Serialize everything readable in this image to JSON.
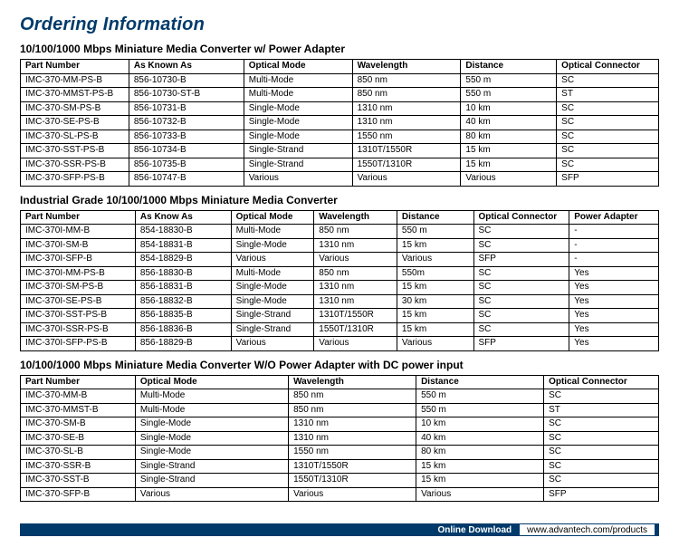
{
  "page_title": "Ordering Information",
  "title_color": "#003a6a",
  "border_color": "#000000",
  "table1": {
    "title": "10/100/1000 Mbps Miniature Media Converter w/ Power Adapter",
    "columns": [
      "Part Number",
      "As Known As",
      "Optical Mode",
      "Wavelength",
      "Distance",
      "Optical Connector"
    ],
    "col_widths": [
      "17%",
      "18%",
      "17%",
      "17%",
      "15%",
      "16%"
    ],
    "rows": [
      [
        "IMC-370-MM-PS-B",
        "856-10730-B",
        "Multi-Mode",
        "850 nm",
        "550 m",
        "SC"
      ],
      [
        "IMC-370-MMST-PS-B",
        "856-10730-ST-B",
        "Multi-Mode",
        "850 nm",
        "550 m",
        "ST"
      ],
      [
        "IMC-370-SM-PS-B",
        "856-10731-B",
        "Single-Mode",
        "1310 nm",
        "10 km",
        "SC"
      ],
      [
        "IMC-370-SE-PS-B",
        "856-10732-B",
        "Single-Mode",
        "1310 nm",
        "40 km",
        "SC"
      ],
      [
        "IMC-370-SL-PS-B",
        "856-10733-B",
        "Single-Mode",
        "1550 nm",
        "80 km",
        "SC"
      ],
      [
        "IMC-370-SST-PS-B",
        "856-10734-B",
        "Single-Strand",
        "1310T/1550R",
        "15 km",
        "SC"
      ],
      [
        "IMC-370-SSR-PS-B",
        "856-10735-B",
        "Single-Strand",
        "1550T/1310R",
        "15 km",
        "SC"
      ],
      [
        "IMC-370-SFP-PS-B",
        "856-10747-B",
        "Various",
        "Various",
        "Various",
        "SFP"
      ]
    ]
  },
  "table2": {
    "title": "Industrial Grade 10/100/1000 Mbps Miniature Media Converter",
    "columns": [
      "Part Number",
      "As Know As",
      "Optical Mode",
      "Wavelength",
      "Distance",
      "Optical Connector",
      "Power Adapter"
    ],
    "col_widths": [
      "18%",
      "15%",
      "13%",
      "13%",
      "12%",
      "15%",
      "14%"
    ],
    "rows": [
      [
        "IMC-370I-MM-B",
        "854-18830-B",
        "Multi-Mode",
        "850 nm",
        "550 m",
        "SC",
        "-"
      ],
      [
        "IMC-370I-SM-B",
        "854-18831-B",
        "Single-Mode",
        "1310 nm",
        "15 km",
        "SC",
        "-"
      ],
      [
        "IMC-370I-SFP-B",
        "854-18829-B",
        "Various",
        "Various",
        "Various",
        "SFP",
        "-"
      ],
      [
        "IMC-370I-MM-PS-B",
        "856-18830-B",
        "Multi-Mode",
        "850 nm",
        "550m",
        "SC",
        "Yes"
      ],
      [
        "IMC-370I-SM-PS-B",
        "856-18831-B",
        "Single-Mode",
        "1310 nm",
        "15 km",
        "SC",
        "Yes"
      ],
      [
        "IMC-370I-SE-PS-B",
        "856-18832-B",
        "Single-Mode",
        "1310 nm",
        "30 km",
        "SC",
        "Yes"
      ],
      [
        "IMC-370I-SST-PS-B",
        "856-18835-B",
        "Single-Strand",
        "1310T/1550R",
        "15 km",
        "SC",
        "Yes"
      ],
      [
        "IMC-370I-SSR-PS-B",
        "856-18836-B",
        "Single-Strand",
        "1550T/1310R",
        "15 km",
        "SC",
        "Yes"
      ],
      [
        "IMC-370I-SFP-PS-B",
        "856-18829-B",
        "Various",
        "Various",
        "Various",
        "SFP",
        "Yes"
      ]
    ]
  },
  "table3": {
    "title": "10/100/1000 Mbps Miniature Media Converter W/O Power Adapter with DC power input",
    "columns": [
      "Part Number",
      "Optical Mode",
      "Wavelength",
      "Distance",
      "Optical Connector"
    ],
    "col_widths": [
      "18%",
      "24%",
      "20%",
      "20%",
      "18%"
    ],
    "rows": [
      [
        "IMC-370-MM-B",
        "Multi-Mode",
        "850 nm",
        "550 m",
        "SC"
      ],
      [
        "IMC-370-MMST-B",
        "Multi-Mode",
        "850 nm",
        "550 m",
        "ST"
      ],
      [
        "IMC-370-SM-B",
        "Single-Mode",
        "1310 nm",
        "10 km",
        "SC"
      ],
      [
        "IMC-370-SE-B",
        "Single-Mode",
        "1310 nm",
        "40 km",
        "SC"
      ],
      [
        "IMC-370-SL-B",
        "Single-Mode",
        "1550 nm",
        "80 km",
        "SC"
      ],
      [
        "IMC-370-SSR-B",
        "Single-Strand",
        "1310T/1550R",
        "15 km",
        "SC"
      ],
      [
        "IMC-370-SST-B",
        "Single-Strand",
        "1550T/1310R",
        "15 km",
        "SC"
      ],
      [
        "IMC-370-SFP-B",
        "Various",
        "Various",
        "Various",
        "SFP"
      ]
    ]
  },
  "footer": {
    "label": "Online Download",
    "url": "www.advantech.com/products",
    "bar_color": "#003a6a"
  }
}
